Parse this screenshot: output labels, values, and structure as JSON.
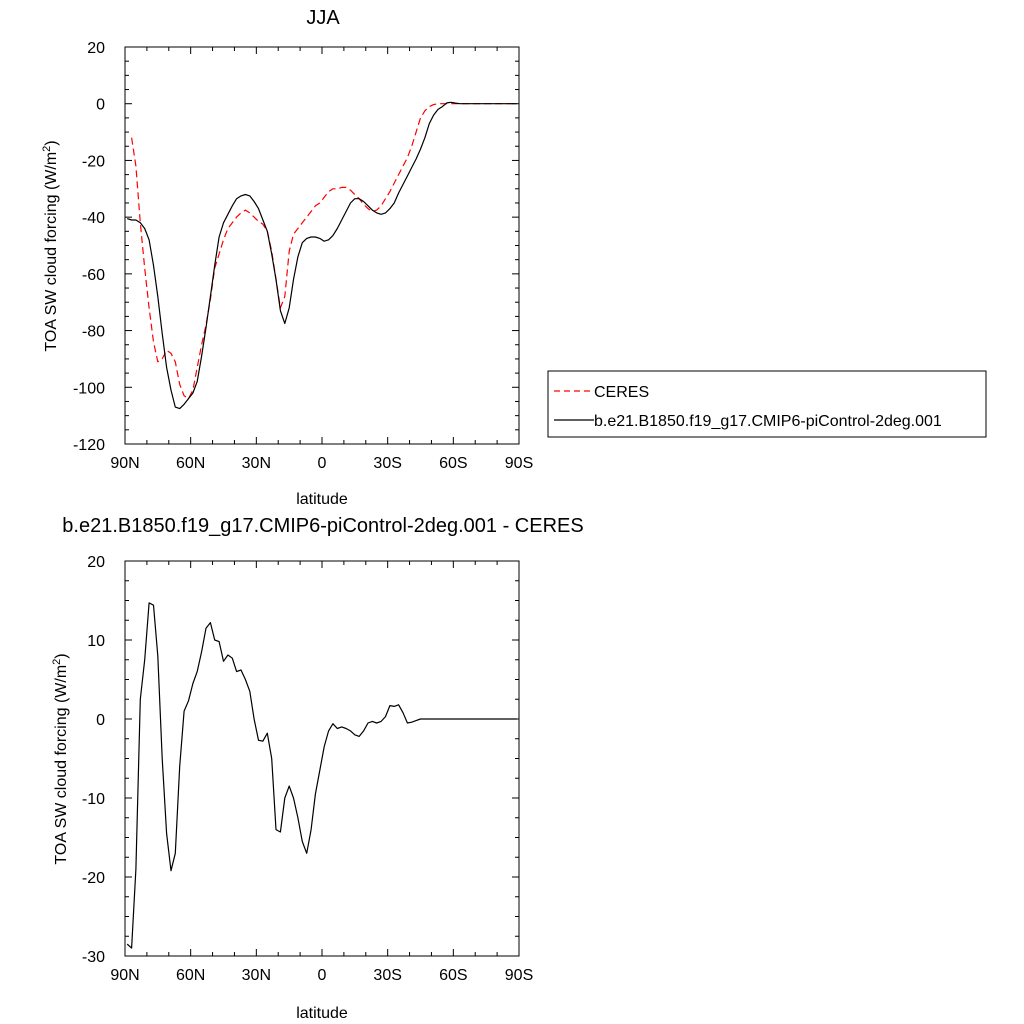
{
  "chart_data": [
    {
      "type": "line",
      "title": "JJA",
      "xlabel": "latitude",
      "ylabel": "TOA SW cloud forcing (W/m",
      "ylabel_sup": "2",
      "ylabel_end": ")",
      "xlim": [
        90,
        -90
      ],
      "ylim": [
        -120,
        20
      ],
      "xticks": [
        90,
        60,
        30,
        0,
        -30,
        -60,
        -90
      ],
      "xtick_labels": [
        "90N",
        "60N",
        "30N",
        "0",
        "30S",
        "60S",
        "90S"
      ],
      "yticks": [
        20,
        0,
        -20,
        -40,
        -60,
        -80,
        -100,
        -120
      ],
      "ytick_labels": [
        "20",
        "0",
        "-20",
        "-40",
        "-60",
        "-80",
        "-100",
        "-120"
      ],
      "legend": {
        "position": "right",
        "entries": [
          "CERES",
          "b.e21.B1850.f19_g17.CMIP6-piControl-2deg.001"
        ]
      },
      "series": [
        {
          "name": "CERES",
          "color": "#ff0000",
          "dash": "dashed",
          "x": [
            87,
            85,
            83,
            81,
            79,
            77,
            75,
            73,
            71,
            69,
            67,
            65,
            63,
            61,
            59,
            57,
            55,
            53,
            51,
            49,
            47,
            45,
            43,
            41,
            39,
            37,
            35,
            33,
            31,
            29,
            27,
            25,
            23,
            21,
            19,
            17,
            15,
            13,
            11,
            9,
            7,
            5,
            3,
            1,
            -1,
            -3,
            -5,
            -7,
            -9,
            -11,
            -13,
            -15,
            -17,
            -19,
            -21,
            -23,
            -25,
            -27,
            -29,
            -31,
            -33,
            -35,
            -37,
            -39,
            -41,
            -43,
            -45,
            -47,
            -49,
            -51,
            -53,
            -55,
            -57,
            -59,
            -61,
            -63,
            -65,
            -67,
            -69,
            -71,
            -73,
            -75,
            -77,
            -79,
            -81,
            -83,
            -85,
            -87,
            -89
          ],
          "y": [
            -12,
            -22,
            -42,
            -58,
            -72,
            -84,
            -91,
            -90,
            -87,
            -88,
            -91,
            -99,
            -103,
            -104,
            -101,
            -93,
            -85,
            -78,
            -69,
            -58,
            -53,
            -48,
            -44,
            -42,
            -40,
            -38.5,
            -37.5,
            -38.5,
            -40,
            -41.5,
            -42.5,
            -45,
            -52,
            -62,
            -72,
            -68,
            -52,
            -46,
            -44,
            -42,
            -40,
            -38,
            -36,
            -35,
            -33,
            -31,
            -30,
            -30,
            -29.5,
            -29.5,
            -30.5,
            -32,
            -33.5,
            -35.5,
            -37,
            -38,
            -37.5,
            -36,
            -33.5,
            -31,
            -28,
            -25,
            -22,
            -19,
            -15,
            -10,
            -5,
            -2.5,
            -1,
            -0.3,
            0,
            0,
            0,
            0,
            0,
            0,
            0,
            0,
            0,
            0,
            0,
            0,
            0,
            0,
            0,
            0,
            0,
            0,
            0
          ]
        },
        {
          "name": "b.e21.B1850.f19_g17.CMIP6-piControl-2deg.001",
          "color": "#000000",
          "dash": "solid",
          "x": [
            89,
            87,
            85,
            83,
            81,
            79,
            77,
            75,
            73,
            71,
            69,
            67,
            65,
            63,
            61,
            59,
            57,
            55,
            53,
            51,
            49,
            47,
            45,
            43,
            41,
            39,
            37,
            35,
            33,
            31,
            29,
            27,
            25,
            23,
            21,
            19,
            17,
            15,
            13,
            11,
            9,
            7,
            5,
            3,
            1,
            -1,
            -3,
            -5,
            -7,
            -9,
            -11,
            -13,
            -15,
            -17,
            -19,
            -21,
            -23,
            -25,
            -27,
            -29,
            -31,
            -33,
            -35,
            -37,
            -39,
            -41,
            -43,
            -45,
            -47,
            -49,
            -51,
            -53,
            -55,
            -57,
            -59,
            -61,
            -63,
            -65,
            -67,
            -69,
            -71,
            -73,
            -75,
            -77,
            -79,
            -81,
            -83,
            -85,
            -87,
            -89
          ],
          "y": [
            -40.5,
            -41,
            -41,
            -42,
            -44,
            -48,
            -57,
            -68,
            -81,
            -93,
            -101,
            -107,
            -107.5,
            -106,
            -104,
            -102,
            -98,
            -89,
            -79,
            -68,
            -57,
            -47,
            -42,
            -39,
            -36,
            -33.5,
            -32.5,
            -32,
            -32.5,
            -34.5,
            -37,
            -41,
            -45,
            -53,
            -62,
            -73,
            -77.5,
            -72,
            -62,
            -54,
            -49,
            -47.5,
            -47,
            -47,
            -47.5,
            -48.5,
            -48,
            -46.5,
            -44,
            -41,
            -38,
            -35,
            -33.5,
            -33.5,
            -34.5,
            -36,
            -37.5,
            -38.5,
            -39,
            -38.5,
            -37,
            -35,
            -31.5,
            -28.5,
            -25.5,
            -22.5,
            -19.5,
            -16,
            -12,
            -7,
            -4,
            -2,
            -1,
            0.3,
            0.5,
            0.2,
            0,
            0,
            0,
            0,
            0,
            0,
            0,
            0,
            0,
            0,
            0,
            0,
            0,
            0
          ]
        }
      ]
    },
    {
      "type": "line",
      "title": "b.e21.B1850.f19_g17.CMIP6-piControl-2deg.001 - CERES",
      "xlabel": "latitude",
      "ylabel": "TOA SW cloud forcing (W/m",
      "ylabel_sup": "2",
      "ylabel_end": ")",
      "xlim": [
        90,
        -90
      ],
      "ylim": [
        -30,
        20
      ],
      "xticks": [
        90,
        60,
        30,
        0,
        -30,
        -60,
        -90
      ],
      "xtick_labels": [
        "90N",
        "60N",
        "30N",
        "0",
        "30S",
        "60S",
        "90S"
      ],
      "yticks": [
        20,
        10,
        0,
        -10,
        -20,
        -30
      ],
      "ytick_labels": [
        "20",
        "10",
        "0",
        "-10",
        "-20",
        "-30"
      ],
      "series": [
        {
          "color": "#000000",
          "dash": "solid",
          "x": [
            89,
            87,
            85,
            83,
            81,
            79,
            77,
            75,
            73,
            71,
            69,
            67,
            65,
            63,
            61,
            59,
            57,
            55,
            53,
            51,
            49,
            47,
            45,
            43,
            41,
            39,
            37,
            35,
            33,
            31,
            29,
            27,
            25,
            23,
            21,
            19,
            17,
            15,
            13,
            11,
            9,
            7,
            5,
            3,
            1,
            -1,
            -3,
            -5,
            -7,
            -9,
            -11,
            -13,
            -15,
            -17,
            -19,
            -21,
            -23,
            -25,
            -27,
            -29,
            -31,
            -33,
            -35,
            -37,
            -39,
            -41,
            -43,
            -45,
            -47,
            -49,
            -51,
            -53,
            -55,
            -57,
            -59,
            -61,
            -63,
            -65,
            -67,
            -69,
            -71,
            -73,
            -75,
            -77,
            -79,
            -81,
            -83,
            -85,
            -87,
            -89
          ],
          "y": [
            -28.5,
            -29,
            -19,
            2.5,
            7.5,
            14.7,
            14.4,
            8,
            -5,
            -14.5,
            -19.2,
            -17,
            -6,
            1,
            2.3,
            4.5,
            6,
            8.5,
            11.5,
            12.2,
            10,
            9.8,
            7.3,
            8.1,
            7.7,
            6,
            6.2,
            5,
            3.5,
            0,
            -2.7,
            -2.8,
            -1.8,
            -5,
            -14,
            -14.3,
            -10,
            -8.5,
            -10,
            -12.5,
            -15.5,
            -17,
            -14,
            -9.5,
            -6.5,
            -3.5,
            -1.5,
            -0.6,
            -1.2,
            -1,
            -1.2,
            -1.5,
            -2,
            -2.2,
            -1.5,
            -0.5,
            -0.3,
            -0.5,
            -0.3,
            0.3,
            1.7,
            1.6,
            1.8,
            0.8,
            -0.5,
            -0.4,
            -0.2,
            0,
            0,
            0,
            0,
            0,
            0,
            0,
            0,
            0,
            0,
            0,
            0,
            0,
            0,
            0,
            0,
            0,
            0,
            0,
            0,
            0,
            0,
            0
          ]
        }
      ]
    }
  ]
}
